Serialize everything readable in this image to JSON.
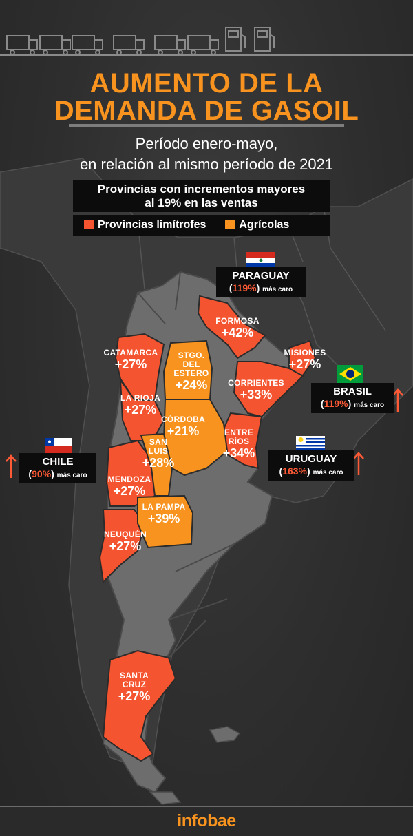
{
  "header": {
    "title_line1": "AUMENTO DE LA",
    "title_line2": "DEMANDA DE GASOIL",
    "subtitle_line1": "Período enero-mayo,",
    "subtitle_line2": "en relación al mismo período de 2021"
  },
  "legend": {
    "title_line1": "Provincias con incrementos mayores",
    "title_line2": "al 19% en las ventas",
    "items": [
      {
        "label": "Provincias limítrofes",
        "color": "#f4542f"
      },
      {
        "label": "Agrícolas",
        "color": "#f7931e"
      }
    ]
  },
  "provinces": [
    {
      "name": "FORMOSA",
      "value": "+42%",
      "category": "limítrofe"
    },
    {
      "name": "CATAMARCA",
      "value": "+27%",
      "category": "limítrofe"
    },
    {
      "name": "MISIONES",
      "value": "+27%",
      "category": "limítrofe"
    },
    {
      "name": "STGO. DEL ESTERO",
      "name_line1": "STGO.",
      "name_line2": "DEL",
      "name_line3": "ESTERO",
      "value": "+24%",
      "category": "agrícola"
    },
    {
      "name": "CORRIENTES",
      "value": "+33%",
      "category": "limítrofe"
    },
    {
      "name": "LA RIOJA",
      "value": "+27%",
      "category": "limítrofe"
    },
    {
      "name": "CÓRDOBA",
      "value": "+21%",
      "category": "agrícola"
    },
    {
      "name": "ENTRE RÍOS",
      "name_line1": "ENTRE",
      "name_line2": "RÍOS",
      "value": "+34%",
      "category": "limítrofe"
    },
    {
      "name": "SAN LUIS",
      "name_line1": "SAN",
      "name_line2": "LUIS",
      "value": "+28%",
      "category": "agrícola"
    },
    {
      "name": "MENDOZA",
      "value": "+27%",
      "category": "limítrofe"
    },
    {
      "name": "LA PAMPA",
      "value": "+39%",
      "category": "agrícola"
    },
    {
      "name": "NEUQUÉN",
      "value": "+27%",
      "category": "limítrofe"
    },
    {
      "name": "SANTA CRUZ",
      "name_line1": "SANTA",
      "name_line2": "CRUZ",
      "value": "+27%",
      "category": "limítrofe"
    }
  ],
  "countries": {
    "paraguay": {
      "name": "PARAGUAY",
      "pct": "119%",
      "note": "más caro",
      "flag_icon": "paraguay-flag-icon"
    },
    "brasil": {
      "name": "BRASIL",
      "pct": "119%",
      "note": "más caro",
      "flag_icon": "brazil-flag-icon"
    },
    "chile": {
      "name": "CHILE",
      "pct": "90%",
      "note": "más caro",
      "flag_icon": "chile-flag-icon"
    },
    "uruguay": {
      "name": "URUGUAY",
      "pct": "163%",
      "note": "más caro",
      "flag_icon": "uruguay-flag-icon"
    }
  },
  "colors": {
    "limitrofe": "#f4542f",
    "agricola": "#f7931e",
    "title": "#f7931e",
    "price_highlight": "#ff5a36",
    "land": "#6d6d6d",
    "neighbor_land": "#3d3d3d"
  },
  "icons": [
    "truck-icon",
    "fuel-pump-icon",
    "up-arrow-icon"
  ],
  "footer": {
    "brand": "infobae"
  }
}
